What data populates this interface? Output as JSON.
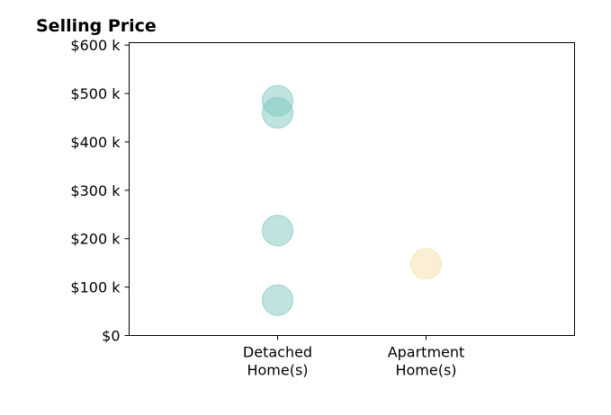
{
  "chart_data": {
    "type": "scatter",
    "title": "Selling Price",
    "xlabel": "",
    "ylabel": "",
    "categories": [
      [
        "Detached",
        "Home(s)"
      ],
      [
        "Apartment",
        "Home(s)"
      ]
    ],
    "x_range": [
      -1,
      2
    ],
    "ylim": [
      0,
      605000
    ],
    "y_ticks": [
      0,
      100000,
      200000,
      300000,
      400000,
      500000,
      600000
    ],
    "y_tick_labels": [
      "$0",
      "$100 k",
      "$200 k",
      "$300 k",
      "$400 k",
      "$500 k",
      "$600 k"
    ],
    "grid": false,
    "legend": "none",
    "series": [
      {
        "color": "#7fc8c0",
        "points": [
          {
            "category": 0,
            "y": 485000
          },
          {
            "category": 0,
            "y": 460000
          },
          {
            "category": 0,
            "y": 217000
          },
          {
            "category": 0,
            "y": 73000
          }
        ]
      },
      {
        "color": "#f5dfaa",
        "points": [
          {
            "category": 1,
            "y": 148000
          }
        ]
      }
    ]
  }
}
